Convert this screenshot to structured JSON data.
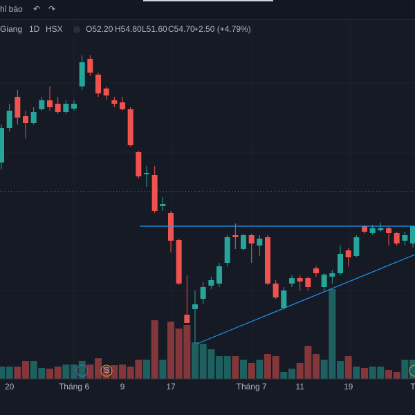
{
  "toolbar": {
    "indicators": "hỉ báo"
  },
  "legend": {
    "symbol": "Giang",
    "interval": "1D",
    "exchange": "HSX",
    "open": "O52.20",
    "high": "H54.80",
    "low": "L51.60",
    "close": "C54.70",
    "change": "+2.50 (+4.79%)"
  },
  "chart_data": {
    "type": "candlestick",
    "categories": [
      null,
      "20",
      null,
      null,
      null,
      null,
      null,
      null,
      null,
      "Tháng 6",
      null,
      null,
      null,
      null,
      null,
      "9",
      null,
      null,
      null,
      null,
      null,
      "17",
      null,
      null,
      null,
      null,
      null,
      null,
      null,
      null,
      null,
      "Tháng 7",
      null,
      null,
      null,
      null,
      null,
      "11",
      null,
      null,
      null,
      null,
      null,
      "19",
      null,
      null,
      null,
      null,
      null,
      null,
      null,
      "T"
    ],
    "open": [
      63.9,
      68.9,
      73.4,
      70.6,
      69.6,
      71.6,
      72.9,
      72.4,
      71.2,
      71.7,
      74.9,
      78.9,
      76.6,
      74.6,
      72.9,
      72.6,
      71.6,
      65.4,
      62.2,
      62.1,
      57.6,
      56.6,
      52.7,
      41.9,
      42.7,
      44.2,
      46.1,
      46.4,
      49.4,
      53.4,
      51.4,
      53.4,
      51.9,
      53.1,
      46.4,
      42.9,
      46.4,
      47.2,
      47.2,
      48.6,
      45.9,
      47.4,
      47.9,
      51.2,
      50.4,
      54.7,
      53.7,
      54.1,
      54.4,
      53.7,
      52.6,
      52.2
    ],
    "high": [
      69.4,
      72.4,
      74.4,
      71.4,
      71.9,
      73.4,
      74.9,
      73.4,
      72.9,
      72.9,
      79.4,
      79.4,
      76.9,
      74.9,
      73.4,
      73.4,
      71.9,
      65.6,
      63.4,
      63.4,
      58.9,
      56.9,
      52.9,
      47.6,
      45.4,
      46.6,
      47.4,
      49.4,
      53.4,
      55.1,
      53.6,
      53.6,
      53.4,
      53.4,
      46.9,
      45.9,
      47.6,
      47.6,
      47.4,
      48.9,
      47.9,
      48.4,
      51.9,
      51.6,
      53.4,
      54.9,
      54.9,
      55.2,
      54.6,
      53.9,
      53.9,
      54.8
    ],
    "low": [
      62.9,
      68.4,
      69.4,
      67.4,
      69.4,
      71.4,
      71.4,
      70.9,
      70.9,
      71.4,
      74.4,
      76.4,
      73.4,
      72.9,
      71.9,
      71.4,
      66.2,
      61.6,
      60.4,
      56.6,
      56.9,
      50.9,
      46.2,
      40.7,
      37.7,
      43.4,
      45.6,
      45.9,
      48.9,
      51.4,
      51.2,
      49.4,
      50.4,
      46.2,
      44.2,
      42.6,
      45.9,
      45.4,
      45.4,
      47.4,
      45.4,
      46.4,
      47.6,
      48.9,
      50.2,
      53.6,
      53.4,
      53.9,
      51.9,
      51.9,
      51.9,
      51.6
    ],
    "close": [
      68.9,
      71.4,
      70.4,
      69.6,
      71.2,
      72.9,
      71.9,
      71.2,
      72.4,
      72.4,
      78.4,
      76.9,
      73.9,
      73.6,
      72.4,
      71.6,
      66.4,
      61.9,
      62.4,
      56.9,
      57.9,
      52.6,
      46.4,
      40.7,
      43.4,
      45.9,
      46.9,
      48.9,
      53.1,
      53.1,
      53.4,
      52.2,
      52.9,
      46.4,
      44.4,
      45.4,
      47.2,
      46.7,
      45.9,
      47.9,
      47.7,
      47.9,
      50.7,
      50.2,
      53.1,
      53.9,
      54.4,
      54.4,
      53.7,
      52.2,
      53.4,
      54.7
    ],
    "volume": [
      18,
      18,
      18,
      26,
      26,
      16,
      15,
      18,
      21,
      21,
      26,
      21,
      30,
      18,
      20,
      21,
      18,
      28,
      28,
      85,
      28,
      83,
      73,
      78,
      53,
      51,
      43,
      33,
      33,
      33,
      28,
      23,
      28,
      36,
      33,
      10,
      15,
      23,
      48,
      36,
      28,
      130,
      26,
      33,
      18,
      16,
      18,
      18,
      13,
      10,
      28,
      28
    ],
    "up_color": "#26a69a",
    "down_color": "#ef5350",
    "ylim": [
      27.4,
      87.4
    ],
    "vlim": [
      0,
      130
    ]
  }
}
